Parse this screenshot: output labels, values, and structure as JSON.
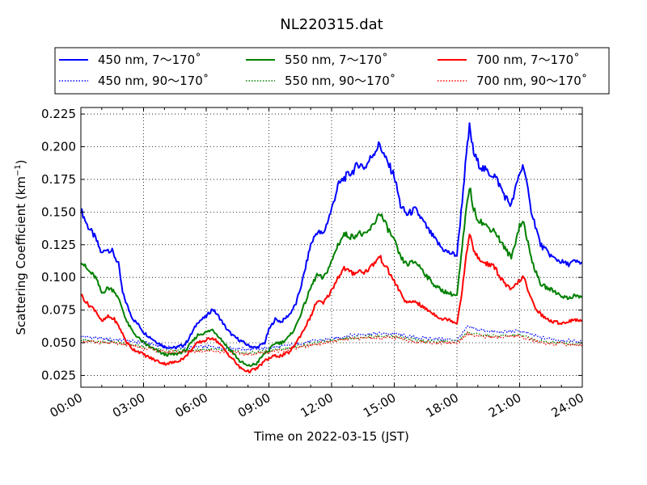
{
  "chart_data": {
    "type": "line",
    "title": "NL220315.dat",
    "xlabel": "Time on 2022-03-15 (JST)",
    "ylabel_main": "Scattering Coefficient (km",
    "ylabel_sup": "−1",
    "ylabel_close": ")",
    "x_unit": "hour of day",
    "xlim": [
      0,
      24
    ],
    "ylim": [
      0.016,
      0.23
    ],
    "x_ticks": [
      0,
      3,
      6,
      9,
      12,
      15,
      18,
      21,
      24
    ],
    "x_tick_labels": [
      "00:00",
      "03:00",
      "06:00",
      "09:00",
      "12:00",
      "15:00",
      "18:00",
      "21:00",
      "24:00"
    ],
    "y_ticks": [
      0.025,
      0.05,
      0.075,
      0.1,
      0.125,
      0.15,
      0.175,
      0.2,
      0.225
    ],
    "y_tick_labels": [
      "0.025",
      "0.050",
      "0.075",
      "0.100",
      "0.125",
      "0.150",
      "0.175",
      "0.200",
      "0.225"
    ],
    "grid": true,
    "legend_position": "top-center, outside plot",
    "legend_columns": 3,
    "series": [
      {
        "name": "450 nm, 7～170˚",
        "color": "#0000ff",
        "style": "solid",
        "x": [
          0,
          0.3,
          0.7,
          1.0,
          1.2,
          1.5,
          1.8,
          2.0,
          2.3,
          2.5,
          2.8,
          3.0,
          3.5,
          4.0,
          4.5,
          5.0,
          5.3,
          5.6,
          6.0,
          6.3,
          6.6,
          7.0,
          7.3,
          7.6,
          8.0,
          8.4,
          8.8,
          9.0,
          9.3,
          9.6,
          10.0,
          10.3,
          10.6,
          11.0,
          11.3,
          11.6,
          12.0,
          12.3,
          12.6,
          13.0,
          13.3,
          13.6,
          14.0,
          14.3,
          14.6,
          15.0,
          15.3,
          15.6,
          16.0,
          16.3,
          16.6,
          17.0,
          17.3,
          17.6,
          18.0,
          18.2,
          18.4,
          18.6,
          18.8,
          19.0,
          19.2,
          19.5,
          19.8,
          20.0,
          20.3,
          20.6,
          21.0,
          21.2,
          21.5,
          21.8,
          22.0,
          22.3,
          22.6,
          23.0,
          23.3,
          23.6,
          24.0
        ],
        "y": [
          0.152,
          0.14,
          0.13,
          0.118,
          0.122,
          0.12,
          0.11,
          0.088,
          0.075,
          0.068,
          0.063,
          0.058,
          0.052,
          0.047,
          0.046,
          0.049,
          0.057,
          0.066,
          0.07,
          0.076,
          0.07,
          0.06,
          0.055,
          0.052,
          0.048,
          0.046,
          0.05,
          0.06,
          0.068,
          0.066,
          0.072,
          0.08,
          0.097,
          0.125,
          0.135,
          0.133,
          0.152,
          0.17,
          0.176,
          0.181,
          0.187,
          0.184,
          0.195,
          0.202,
          0.19,
          0.178,
          0.155,
          0.148,
          0.152,
          0.145,
          0.137,
          0.128,
          0.122,
          0.119,
          0.117,
          0.15,
          0.185,
          0.215,
          0.195,
          0.188,
          0.184,
          0.18,
          0.178,
          0.172,
          0.162,
          0.155,
          0.18,
          0.186,
          0.155,
          0.137,
          0.125,
          0.12,
          0.115,
          0.112,
          0.11,
          0.112,
          0.111
        ]
      },
      {
        "name": "450 nm, 90～170˚",
        "color": "#0000ff",
        "style": "dotted",
        "x": [
          0,
          1,
          2,
          3,
          4,
          5,
          6,
          7,
          8,
          9,
          10,
          11,
          12,
          13,
          14,
          15,
          16,
          17,
          18,
          18.5,
          19,
          20,
          21,
          22,
          23,
          24
        ],
        "y": [
          0.055,
          0.053,
          0.052,
          0.05,
          0.047,
          0.046,
          0.047,
          0.046,
          0.045,
          0.046,
          0.048,
          0.051,
          0.053,
          0.056,
          0.057,
          0.057,
          0.054,
          0.053,
          0.052,
          0.062,
          0.06,
          0.058,
          0.059,
          0.054,
          0.052,
          0.051
        ]
      },
      {
        "name": "550 nm, 7～170˚",
        "color": "#008000",
        "style": "solid",
        "x": [
          0,
          0.3,
          0.7,
          1.0,
          1.3,
          1.6,
          1.9,
          2.2,
          2.5,
          2.8,
          3.0,
          3.5,
          4.0,
          4.5,
          5.0,
          5.3,
          5.6,
          6.0,
          6.3,
          6.6,
          7.0,
          7.3,
          7.6,
          8.0,
          8.4,
          8.8,
          9.0,
          9.3,
          9.6,
          10.0,
          10.3,
          10.6,
          11.0,
          11.3,
          11.6,
          12.0,
          12.3,
          12.6,
          13.0,
          13.3,
          13.6,
          14.0,
          14.3,
          14.6,
          15.0,
          15.3,
          15.6,
          16.0,
          16.3,
          16.6,
          17.0,
          17.3,
          17.6,
          18.0,
          18.2,
          18.4,
          18.6,
          18.8,
          19.0,
          19.2,
          19.5,
          19.8,
          20.0,
          20.3,
          20.6,
          21.0,
          21.2,
          21.5,
          21.8,
          22.0,
          22.3,
          22.6,
          23.0,
          23.3,
          23.6,
          24.0
        ],
        "y": [
          0.113,
          0.106,
          0.1,
          0.088,
          0.092,
          0.09,
          0.08,
          0.066,
          0.058,
          0.053,
          0.05,
          0.045,
          0.041,
          0.041,
          0.044,
          0.05,
          0.056,
          0.058,
          0.06,
          0.055,
          0.047,
          0.042,
          0.036,
          0.032,
          0.034,
          0.042,
          0.044,
          0.05,
          0.05,
          0.055,
          0.063,
          0.075,
          0.092,
          0.102,
          0.099,
          0.112,
          0.125,
          0.133,
          0.131,
          0.134,
          0.132,
          0.14,
          0.15,
          0.14,
          0.128,
          0.115,
          0.11,
          0.112,
          0.107,
          0.1,
          0.093,
          0.09,
          0.088,
          0.086,
          0.115,
          0.145,
          0.17,
          0.152,
          0.145,
          0.142,
          0.138,
          0.136,
          0.13,
          0.122,
          0.115,
          0.14,
          0.142,
          0.118,
          0.103,
          0.095,
          0.092,
          0.09,
          0.086,
          0.084,
          0.086,
          0.085
        ]
      },
      {
        "name": "550 nm, 90～170˚",
        "color": "#008000",
        "style": "dotted",
        "x": [
          0,
          1,
          2,
          3,
          4,
          5,
          6,
          7,
          8,
          9,
          10,
          11,
          12,
          13,
          14,
          15,
          16,
          17,
          18,
          18.5,
          19,
          20,
          21,
          22,
          23,
          24
        ],
        "y": [
          0.052,
          0.051,
          0.05,
          0.047,
          0.044,
          0.044,
          0.045,
          0.044,
          0.042,
          0.044,
          0.046,
          0.049,
          0.052,
          0.054,
          0.055,
          0.055,
          0.052,
          0.051,
          0.051,
          0.058,
          0.056,
          0.055,
          0.056,
          0.051,
          0.05,
          0.049
        ]
      },
      {
        "name": "700 nm, 7～170˚",
        "color": "#ff0000",
        "style": "solid",
        "x": [
          0,
          0.3,
          0.7,
          1.0,
          1.3,
          1.6,
          1.9,
          2.2,
          2.5,
          2.8,
          3.0,
          3.5,
          4.0,
          4.5,
          5.0,
          5.3,
          5.6,
          6.0,
          6.3,
          6.6,
          7.0,
          7.3,
          7.6,
          8.0,
          8.4,
          8.8,
          9.0,
          9.3,
          9.6,
          10.0,
          10.3,
          10.6,
          11.0,
          11.3,
          11.6,
          12.0,
          12.3,
          12.6,
          13.0,
          13.3,
          13.6,
          14.0,
          14.3,
          14.6,
          15.0,
          15.3,
          15.6,
          16.0,
          16.3,
          16.6,
          17.0,
          17.3,
          17.6,
          18.0,
          18.2,
          18.4,
          18.6,
          18.8,
          19.0,
          19.2,
          19.5,
          19.8,
          20.0,
          20.3,
          20.6,
          21.0,
          21.2,
          21.5,
          21.8,
          22.0,
          22.3,
          22.6,
          23.0,
          23.3,
          23.6,
          24.0
        ],
        "y": [
          0.087,
          0.08,
          0.075,
          0.066,
          0.07,
          0.068,
          0.06,
          0.05,
          0.045,
          0.043,
          0.041,
          0.037,
          0.034,
          0.035,
          0.039,
          0.045,
          0.05,
          0.052,
          0.054,
          0.05,
          0.042,
          0.037,
          0.031,
          0.028,
          0.03,
          0.036,
          0.038,
          0.04,
          0.04,
          0.043,
          0.05,
          0.058,
          0.07,
          0.082,
          0.08,
          0.09,
          0.1,
          0.107,
          0.103,
          0.105,
          0.104,
          0.11,
          0.116,
          0.108,
          0.097,
          0.088,
          0.08,
          0.082,
          0.078,
          0.075,
          0.071,
          0.068,
          0.068,
          0.065,
          0.085,
          0.11,
          0.135,
          0.12,
          0.115,
          0.112,
          0.11,
          0.108,
          0.102,
          0.095,
          0.09,
          0.098,
          0.1,
          0.085,
          0.076,
          0.072,
          0.068,
          0.066,
          0.065,
          0.066,
          0.068,
          0.066
        ]
      },
      {
        "name": "700 nm, 90～170˚",
        "color": "#ff0000",
        "style": "dotted",
        "x": [
          0,
          1,
          2,
          3,
          4,
          5,
          6,
          7,
          8,
          9,
          10,
          11,
          12,
          13,
          14,
          15,
          16,
          17,
          18,
          18.5,
          19,
          20,
          21,
          22,
          23,
          24
        ],
        "y": [
          0.051,
          0.05,
          0.049,
          0.046,
          0.043,
          0.043,
          0.044,
          0.043,
          0.041,
          0.043,
          0.045,
          0.048,
          0.051,
          0.053,
          0.054,
          0.054,
          0.051,
          0.05,
          0.05,
          0.057,
          0.055,
          0.054,
          0.055,
          0.05,
          0.049,
          0.048
        ]
      }
    ]
  }
}
